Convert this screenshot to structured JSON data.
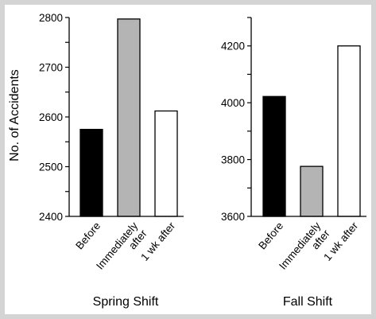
{
  "chart_data": [
    {
      "type": "bar",
      "title": "Spring Shift",
      "xlabel": "",
      "ylabel": "No. of Accidents",
      "categories": [
        "Before",
        "Immediately\nafter",
        "1 wk after"
      ],
      "values": [
        2575,
        2797,
        2612
      ],
      "ylim": [
        2400,
        2800
      ],
      "yticks": [
        2400,
        2500,
        2600,
        2700,
        2800
      ],
      "bar_fills": [
        "#000000",
        "#b4b4b4",
        "#ffffff"
      ],
      "grid": false
    },
    {
      "type": "bar",
      "title": "Fall Shift",
      "xlabel": "",
      "ylabel": "",
      "categories": [
        "Before",
        "Immediately\nafter",
        "1 wk after"
      ],
      "values": [
        4022,
        3776,
        4200
      ],
      "ylim": [
        3600,
        4300
      ],
      "yticks": [
        3600,
        3800,
        4000,
        4200
      ],
      "bar_fills": [
        "#000000",
        "#b4b4b4",
        "#ffffff"
      ],
      "grid": false
    }
  ]
}
